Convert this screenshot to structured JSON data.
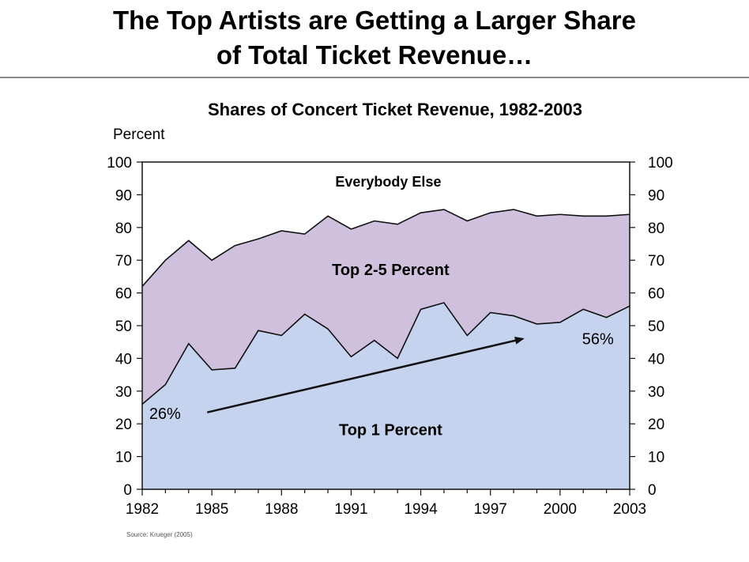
{
  "slide": {
    "title_line1": "The Top Artists are Getting a Larger Share",
    "title_line2": "of Total Ticket Revenue…"
  },
  "colors": {
    "top1": "#c5d3ee",
    "top2_5": "#cfc0de",
    "line": "#111111",
    "rule": "#8a8a8a"
  },
  "chart_data": {
    "type": "area",
    "title": "Shares of Concert Ticket Revenue, 1982-2003",
    "ylabel": "Percent",
    "xlabel": "",
    "source": "Source: Krueger (2005)",
    "xlim": [
      1982,
      2003
    ],
    "ylim": [
      0,
      100
    ],
    "x_ticks": [
      1982,
      1985,
      1988,
      1991,
      1994,
      1997,
      2000,
      2003
    ],
    "y_ticks": [
      0,
      10,
      20,
      30,
      40,
      50,
      60,
      70,
      80,
      90,
      100
    ],
    "x": [
      1982,
      1983,
      1984,
      1985,
      1986,
      1987,
      1988,
      1989,
      1990,
      1991,
      1992,
      1993,
      1994,
      1995,
      1996,
      1997,
      1998,
      1999,
      2000,
      2001,
      2002,
      2003
    ],
    "series": [
      {
        "name": "Top 1 Percent",
        "values": [
          26,
          32,
          44.5,
          36.5,
          37,
          48.5,
          47,
          53.5,
          49,
          40.5,
          45.5,
          40,
          55,
          57,
          47,
          54,
          53,
          50.5,
          51,
          55,
          52.5,
          56
        ]
      },
      {
        "name": "Top 2-5 Percent (cumulative top 5 share)",
        "values": [
          62,
          70,
          76,
          70,
          74.5,
          76.5,
          79,
          78,
          83.5,
          79.5,
          82,
          81,
          84.5,
          85.5,
          82,
          84.5,
          85.5,
          83.5,
          84,
          83.5,
          83.5,
          84
        ]
      }
    ],
    "regions": [
      "Everybody  Else",
      "Top 2-5 Percent",
      "Top 1 Percent"
    ],
    "annotations": {
      "start_label": "26%",
      "end_label": "56%",
      "arrow": {
        "from": [
          1984.8,
          23.5
        ],
        "to": [
          1998.4,
          46
        ]
      }
    }
  }
}
